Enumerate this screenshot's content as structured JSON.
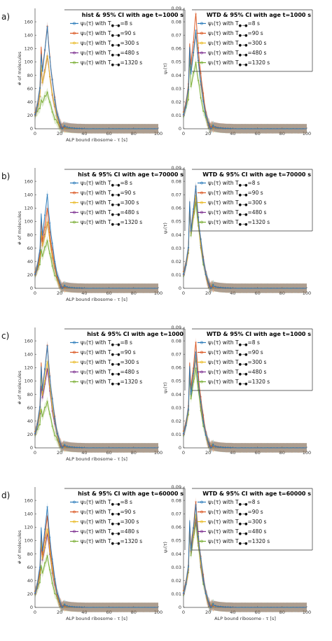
{
  "charts": [
    {
      "panel": "a)",
      "ylabel": "# of molecules",
      "xlabel": "ALP bound ribosome - τ [s]",
      "title": "hist & 95% CI with age t=1000 s",
      "ylim": [
        0,
        180
      ],
      "yticks": [
        0,
        20,
        40,
        60,
        80,
        100,
        120,
        140,
        160
      ],
      "xlim": [
        0,
        100
      ],
      "xticks": [
        0,
        20,
        40,
        60,
        80,
        100
      ],
      "peaks": [
        150,
        152,
        110,
        110,
        55
      ],
      "shoulder": [
        110,
        120,
        95,
        90,
        45
      ]
    },
    {
      "panel": "",
      "ylabel": "ψ₁(τ)",
      "xlabel": "",
      "title": "WTD & 95% CI with age t=1000 s",
      "ylim": [
        0,
        0.09
      ],
      "yticks": [
        0,
        0.01,
        0.02,
        0.03,
        0.04,
        0.05,
        0.06,
        0.07,
        0.08,
        0.09
      ],
      "xlim": [
        0,
        100
      ],
      "xticks": [
        0,
        20,
        40,
        60,
        80,
        100
      ],
      "peaks": [
        0.072,
        0.085,
        0.072,
        0.072,
        0.05
      ],
      "shoulder": [
        0.06,
        0.062,
        0.058,
        0.058,
        0.055
      ]
    },
    {
      "panel": "b)",
      "ylabel": "# of molecules",
      "xlabel": "ALP bound ribosome - τ [s]",
      "title": "hist & 95% CI with age t=70000 s",
      "ylim": [
        0,
        180
      ],
      "yticks": [
        0,
        20,
        40,
        60,
        80,
        100,
        120,
        140,
        160
      ],
      "xlim": [
        0,
        100
      ],
      "xticks": [
        0,
        20,
        40,
        60,
        80,
        100
      ],
      "peaks": [
        138,
        118,
        100,
        100,
        72
      ],
      "shoulder": [
        110,
        100,
        85,
        80,
        60
      ]
    },
    {
      "panel": "",
      "ylabel": "ψ₁(τ)",
      "xlabel": "",
      "title": "WTD & 95% CI with age t=70000 s",
      "ylim": [
        0,
        0.09
      ],
      "yticks": [
        0,
        0.01,
        0.02,
        0.03,
        0.04,
        0.05,
        0.06,
        0.07,
        0.08,
        0.09
      ],
      "xlim": [
        0,
        100
      ],
      "xticks": [
        0,
        20,
        40,
        60,
        80,
        100
      ],
      "peaks": [
        0.075,
        0.075,
        0.07,
        0.07,
        0.065
      ],
      "shoulder": [
        0.064,
        0.063,
        0.06,
        0.06,
        0.06
      ]
    },
    {
      "panel": "c)",
      "ylabel": "# of molecules",
      "xlabel": "ALP bound ribosome - τ [s]",
      "title": "hist & 95% CI with age t=1000",
      "ylim": [
        0,
        180
      ],
      "yticks": [
        0,
        20,
        40,
        60,
        80,
        100,
        120,
        140,
        160
      ],
      "xlim": [
        0,
        100
      ],
      "xticks": [
        0,
        20,
        40,
        60,
        80,
        100
      ],
      "peaks": [
        150,
        152,
        130,
        120,
        70
      ],
      "shoulder": [
        120,
        125,
        110,
        95,
        60
      ]
    },
    {
      "panel": "",
      "ylabel": "ψ₁(τ)",
      "xlabel": "",
      "title": "WTD & 95% CI with age t=1000 s",
      "ylim": [
        0,
        0.09
      ],
      "yticks": [
        0,
        0.01,
        0.02,
        0.03,
        0.04,
        0.05,
        0.06,
        0.07,
        0.08,
        0.09
      ],
      "xlim": [
        0,
        100
      ],
      "xticks": [
        0,
        20,
        40,
        60,
        80,
        100
      ],
      "peaks": [
        0.07,
        0.078,
        0.068,
        0.068,
        0.06
      ],
      "shoulder": [
        0.06,
        0.062,
        0.058,
        0.058,
        0.055
      ]
    },
    {
      "panel": "d)",
      "ylabel": "# of molecules",
      "xlabel": "ALP bound ribosome - τ [s]",
      "title": "hist & 95% CI with age t=60000 s",
      "ylim": [
        0,
        180
      ],
      "yticks": [
        0,
        20,
        40,
        60,
        80,
        100,
        120,
        140,
        160
      ],
      "xlim": [
        0,
        100
      ],
      "xticks": [
        0,
        20,
        40,
        60,
        80,
        100
      ],
      "peaks": [
        148,
        135,
        118,
        112,
        78
      ],
      "shoulder": [
        118,
        112,
        100,
        95,
        65
      ]
    },
    {
      "panel": "",
      "ylabel": "ψ₁(τ)",
      "xlabel": "ALP bound ribosome - τ [s]",
      "title": "WTD & 95% CI with age t=60000 s",
      "ylim": [
        0,
        0.09
      ],
      "yticks": [
        0,
        0.01,
        0.02,
        0.03,
        0.04,
        0.05,
        0.06,
        0.07,
        0.08,
        0.09
      ],
      "xlim": [
        0,
        100
      ],
      "xticks": [
        0,
        20,
        40,
        60,
        80,
        100
      ],
      "peaks": [
        0.075,
        0.078,
        0.07,
        0.068,
        0.064
      ],
      "shoulder": [
        0.064,
        0.062,
        0.06,
        0.06,
        0.058
      ]
    }
  ],
  "legend": [
    {
      "prefix": "ψ₁(τ) with T",
      "value": "=8 s",
      "color": "#2b7bba"
    },
    {
      "prefix": "ψ₁(τ) with T",
      "value": "=90 s",
      "color": "#d9541e"
    },
    {
      "prefix": "ψ₁(τ) with T",
      "value": "=300 s",
      "color": "#e8b923"
    },
    {
      "prefix": "ψ₁(τ) with T",
      "value": "=480 s",
      "color": "#7b2d8e"
    },
    {
      "prefix": "ψ₁(τ) with T",
      "value": "=1320 s",
      "color": "#77ac30"
    }
  ]
}
